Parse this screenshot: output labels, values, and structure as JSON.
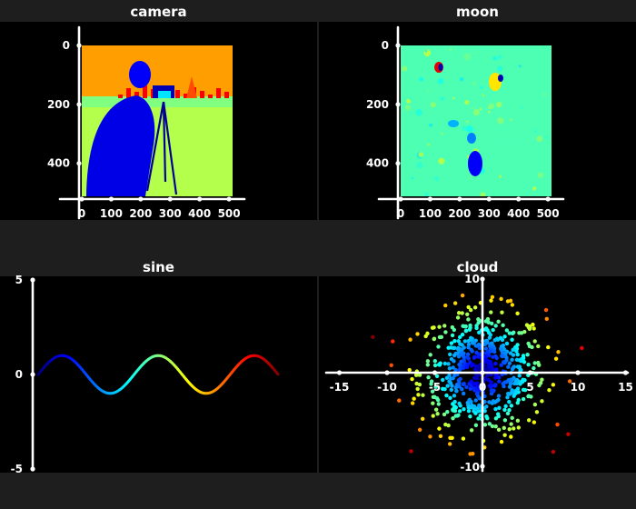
{
  "chart_data": [
    {
      "type": "heatmap",
      "title": "camera",
      "image": "camera",
      "colormap": "jet",
      "extent": [
        0,
        512
      ],
      "x_ticks": [
        "0",
        "100",
        "200",
        "300",
        "400",
        "500"
      ],
      "y_ticks": [
        "0",
        "200",
        "400"
      ],
      "y_inverted": true
    },
    {
      "type": "heatmap",
      "title": "moon",
      "image": "moon",
      "colormap": "jet",
      "extent": [
        0,
        512
      ],
      "x_ticks": [
        "0",
        "100",
        "200",
        "300",
        "400",
        "500"
      ],
      "y_ticks": [
        "0",
        "200",
        "400"
      ],
      "y_inverted": true
    },
    {
      "type": "line",
      "title": "sine",
      "function": "sin",
      "x_range": [
        0,
        15.7
      ],
      "y_ticks": [
        "5",
        "0",
        "-5"
      ],
      "ylim": [
        -5,
        5
      ],
      "colormap": "jet"
    },
    {
      "type": "scatter",
      "title": "cloud",
      "distribution": "gaussian",
      "n_points": 600,
      "sigma": 3.3,
      "x_ticks": [
        "-15",
        "-10",
        "-5",
        "0",
        "5",
        "10",
        "15"
      ],
      "y_ticks": [
        "10",
        "-10"
      ],
      "xlim": [
        -16.5,
        16.5
      ],
      "ylim": [
        -10,
        10
      ],
      "colormap": "jet",
      "color_by": "distance from origin"
    }
  ]
}
